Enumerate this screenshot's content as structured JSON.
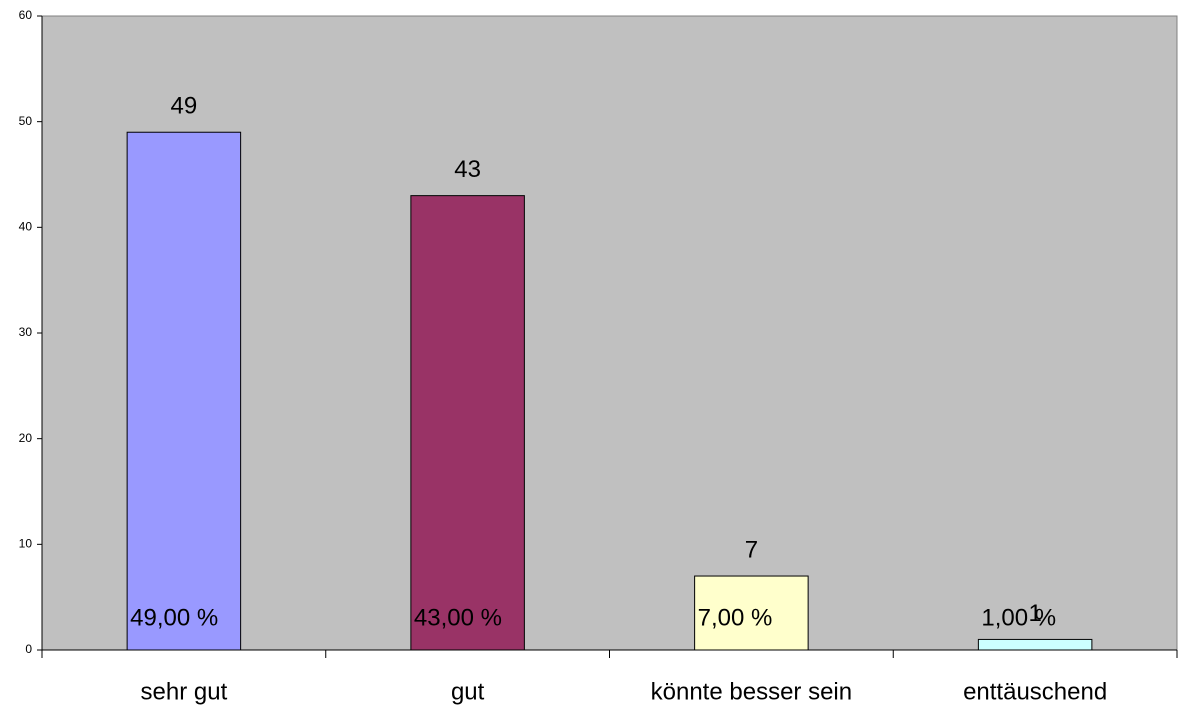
{
  "chart_data": {
    "type": "bar",
    "categories": [
      "sehr gut",
      "gut",
      "könnte besser sein",
      "enttäuschend"
    ],
    "values": [
      49,
      43,
      7,
      1
    ],
    "value_labels": [
      "49,00 %",
      "43,00 %",
      "7,00 %",
      "1,00 %"
    ],
    "colors": [
      "#9999ff",
      "#993366",
      "#ffffcc",
      "#ccffff"
    ],
    "ylim": [
      0,
      60
    ],
    "yticks": [
      0,
      10,
      20,
      30,
      40,
      50,
      60
    ]
  }
}
